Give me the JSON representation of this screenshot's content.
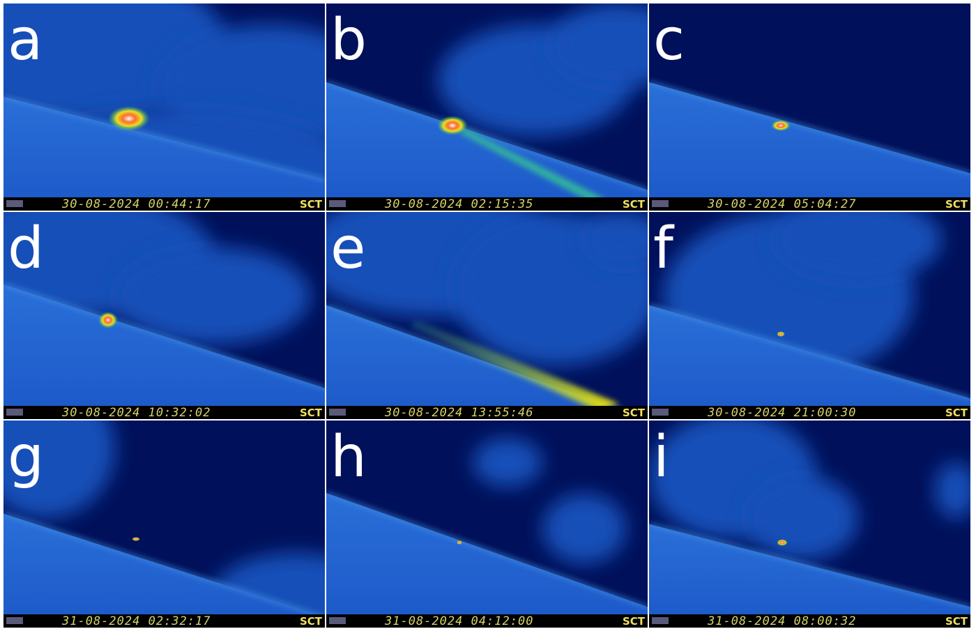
{
  "panels": [
    {
      "label": "a",
      "timestamp": "30-08-2024 00:44:17",
      "camera": "SCT"
    },
    {
      "label": "b",
      "timestamp": "30-08-2024 02:15:35",
      "camera": "SCT"
    },
    {
      "label": "c",
      "timestamp": "30-08-2024 05:04:27",
      "camera": "SCT"
    },
    {
      "label": "d",
      "timestamp": "30-08-2024 10:32:02",
      "camera": "SCT"
    },
    {
      "label": "e",
      "timestamp": "30-08-2024 13:55:46",
      "camera": "SCT"
    },
    {
      "label": "f",
      "timestamp": "30-08-2024 21:00:30",
      "camera": "SCT"
    },
    {
      "label": "g",
      "timestamp": "31-08-2024 02:32:17",
      "camera": "SCT"
    },
    {
      "label": "h",
      "timestamp": "31-08-2024 04:12:00",
      "camera": "SCT"
    },
    {
      "label": "i",
      "timestamp": "31-08-2024 08:00:32",
      "camera": "SCT"
    }
  ]
}
